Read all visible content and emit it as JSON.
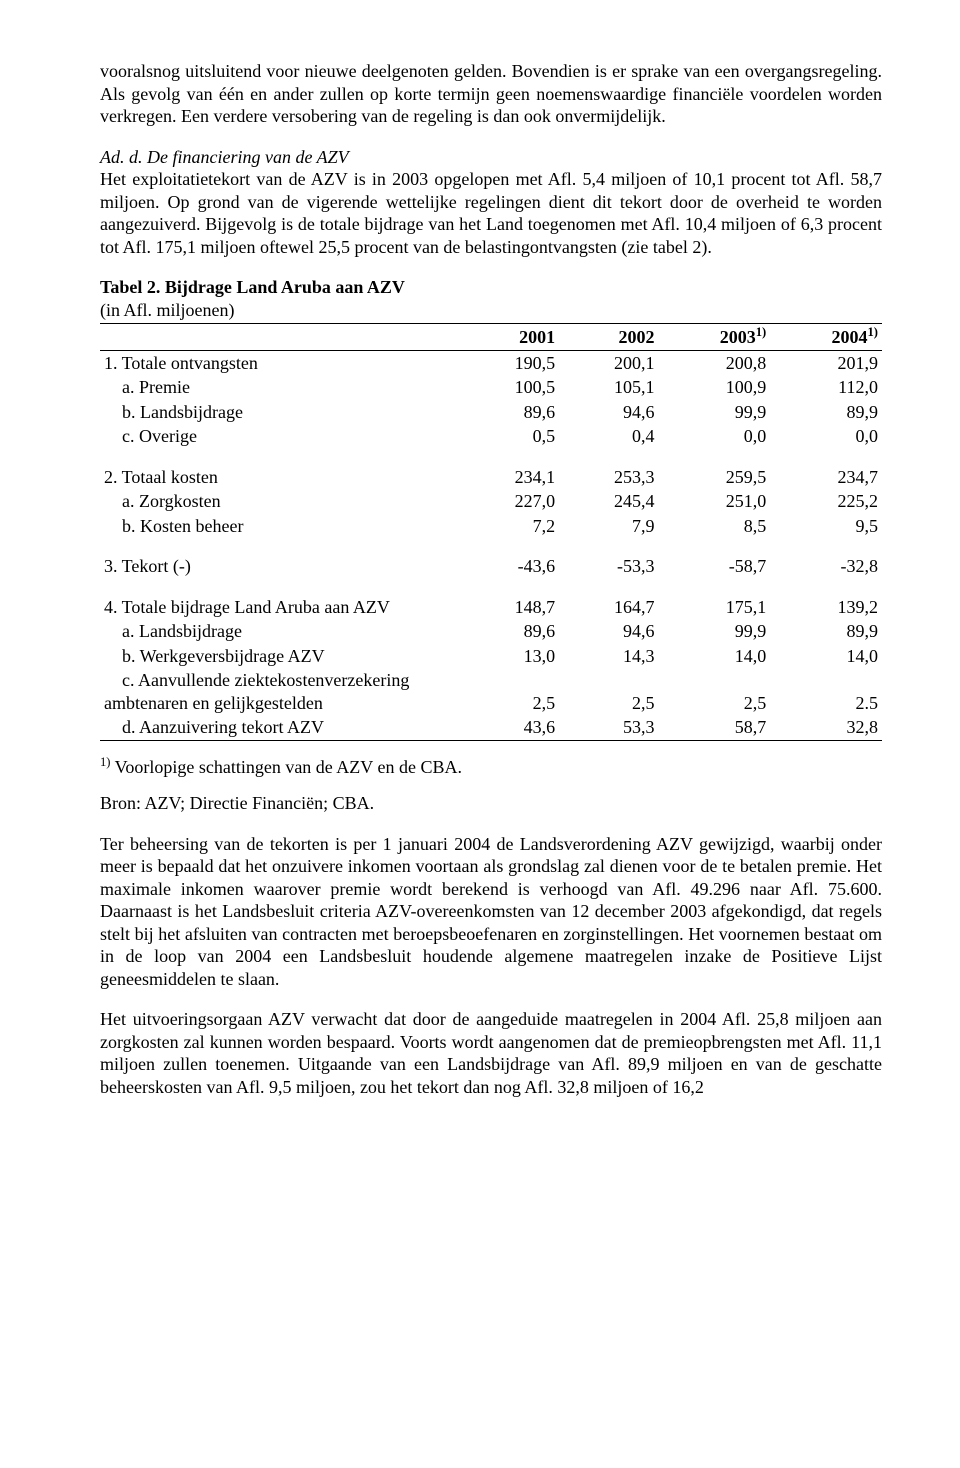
{
  "para1": "vooralsnog uitsluitend voor nieuwe deelgenoten gelden. Bovendien is er sprake van een overgangsregeling. Als gevolg van één en ander zullen op korte termijn geen noemenswaardige financiële voordelen worden verkregen. Een verdere versobering van de regeling is dan ook onvermijdelijk.",
  "section_head": "Ad. d. De financiering van de AZV",
  "para2": "Het exploitatietekort van de AZV is in 2003 opgelopen met Afl. 5,4 miljoen of 10,1 procent tot Afl. 58,7 miljoen. Op grond van de vigerende wettelijke regelingen dient dit tekort door de overheid te worden aangezuiverd. Bijgevolg is de totale bijdrage van het Land toegenomen met Afl. 10,4 miljoen of 6,3 procent tot Afl. 175,1 miljoen oftewel 25,5 procent van de belastingontvangsten (zie tabel 2).",
  "table": {
    "title": "Tabel 2. Bijdrage Land Aruba aan AZV",
    "subtitle": "(in Afl. miljoenen)",
    "col_headers": [
      "2001",
      "2002",
      "2003",
      "2004"
    ],
    "col_sup": [
      "",
      "",
      "1)",
      "1)"
    ],
    "rows": [
      {
        "label": "1. Totale ontvangsten",
        "v": [
          "190,5",
          "200,1",
          "200,8",
          "201,9"
        ]
      },
      {
        "label": "    a. Premie",
        "v": [
          "100,5",
          "105,1",
          "100,9",
          "112,0"
        ]
      },
      {
        "label": "    b. Landsbijdrage",
        "v": [
          "89,6",
          "94,6",
          "99,9",
          "89,9"
        ]
      },
      {
        "label": "    c. Overige",
        "v": [
          "0,5",
          "0,4",
          "0,0",
          "0,0"
        ]
      },
      {
        "spacer": true
      },
      {
        "label": "2. Totaal kosten",
        "v": [
          "234,1",
          "253,3",
          "259,5",
          "234,7"
        ]
      },
      {
        "label": "    a. Zorgkosten",
        "v": [
          "227,0",
          "245,4",
          "251,0",
          "225,2"
        ]
      },
      {
        "label": "    b. Kosten beheer",
        "v": [
          "7,2",
          "7,9",
          "8,5",
          "9,5"
        ]
      },
      {
        "spacer": true
      },
      {
        "label": "3. Tekort (-)",
        "v": [
          "-43,6",
          "-53,3",
          "-58,7",
          "-32,8"
        ]
      },
      {
        "spacer": true
      },
      {
        "label": "4. Totale bijdrage Land Aruba aan AZV",
        "v": [
          "148,7",
          "164,7",
          "175,1",
          "139,2"
        ]
      },
      {
        "label": "    a. Landsbijdrage",
        "v": [
          "89,6",
          "94,6",
          "99,9",
          "89,9"
        ]
      },
      {
        "label": "    b. Werkgeversbijdrage AZV",
        "v": [
          "13,0",
          "14,3",
          "14,0",
          "14,0"
        ]
      },
      {
        "label": "    c. Aanvullende ziektekostenverzekering ambtenaren en gelijkgestelden",
        "v": [
          "2,5",
          "2,5",
          "2,5",
          "2.5"
        ]
      },
      {
        "label": "    d. Aanzuivering tekort AZV",
        "v": [
          "43,6",
          "53,3",
          "58,7",
          "32,8"
        ],
        "bottom": true
      }
    ],
    "footnote_sup": "1)",
    "footnote": "  Voorlopige schattingen van de AZV en de CBA.",
    "source": "Bron: AZV; Directie Financiën; CBA."
  },
  "para3": "Ter beheersing van de tekorten is per 1 januari 2004 de Landsverordening AZV gewijzigd, waarbij onder meer is bepaald dat het onzuivere inkomen voortaan als grondslag zal dienen voor de te betalen premie. Het maximale inkomen waarover premie wordt berekend is verhoogd van Afl. 49.296 naar Afl. 75.600. Daarnaast is het Landsbesluit criteria AZV-overeenkomsten van 12 december 2003 afgekondigd, dat regels stelt bij het afsluiten van contracten met beroepsbeoefenaren en zorginstellingen. Het voornemen bestaat om in de loop van 2004 een Landsbesluit houdende algemene maatregelen inzake de Positieve Lijst geneesmiddelen te slaan.",
  "para4": "Het uitvoeringsorgaan AZV verwacht dat door de aangeduide maatregelen in 2004 Afl. 25,8 miljoen aan zorgkosten zal kunnen worden bespaard. Voorts wordt aangenomen dat de premieopbrengsten met Afl. 11,1 miljoen zullen toenemen. Uitgaande van een Landsbijdrage van Afl. 89,9 miljoen en van de geschatte beheerskosten van Afl. 9,5 miljoen, zou het tekort dan nog Afl. 32,8 miljoen of 16,2"
}
